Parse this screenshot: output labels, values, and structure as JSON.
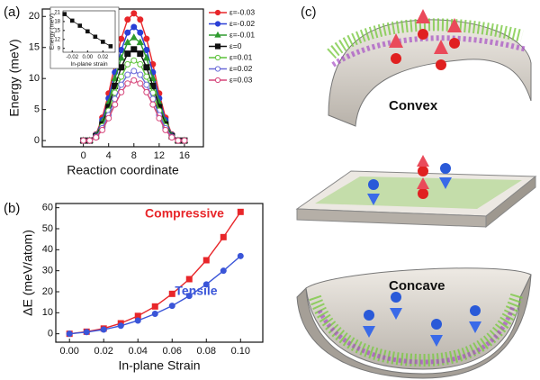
{
  "chart_data": [
    {
      "type": "line",
      "panel_label": "(a)",
      "xlabel": "Reaction coordinate",
      "ylabel": "Energy (meV)",
      "x": [
        0,
        1,
        2,
        3,
        4,
        5,
        6,
        7,
        8,
        9,
        10,
        11,
        12,
        13,
        14,
        15,
        16
      ],
      "xlim": [
        -6.5,
        19
      ],
      "xticks": [
        0,
        4,
        8,
        12,
        16
      ],
      "ylim": [
        -1,
        21.2
      ],
      "yticks": [
        0,
        5,
        10,
        15,
        20
      ],
      "series": [
        {
          "name": "ε=-0.03",
          "color": "#e8262a",
          "marker": "circle",
          "filled": true,
          "values": [
            0,
            0,
            1.0,
            3.7,
            7.6,
            12.3,
            16.4,
            19.5,
            20.5,
            19.5,
            16.4,
            12.3,
            7.6,
            3.7,
            1.0,
            0,
            0
          ]
        },
        {
          "name": "ε=-0.02",
          "color": "#2a3fd6",
          "marker": "circle",
          "filled": true,
          "values": [
            0,
            0,
            0.9,
            3.3,
            6.8,
            11.0,
            14.6,
            17.4,
            18.3,
            17.4,
            14.6,
            11.0,
            6.8,
            3.3,
            0.9,
            0,
            0
          ]
        },
        {
          "name": "ε=-0.01",
          "color": "#2e9a2e",
          "marker": "triangle",
          "filled": true,
          "values": [
            0,
            0,
            0.8,
            3.0,
            6.1,
            10.0,
            13.3,
            15.8,
            16.6,
            15.8,
            13.3,
            10.0,
            6.1,
            3.0,
            0.8,
            0,
            0
          ]
        },
        {
          "name": "ε=0",
          "color": "#111111",
          "marker": "square",
          "filled": true,
          "values": [
            0,
            0,
            0.7,
            2.6,
            5.4,
            8.8,
            11.8,
            14.0,
            14.7,
            14.0,
            11.8,
            8.8,
            5.4,
            2.6,
            0.7,
            0,
            0
          ]
        },
        {
          "name": "ε=0.01",
          "color": "#5cc23a",
          "marker": "circle",
          "filled": false,
          "values": [
            0,
            0,
            0.6,
            2.3,
            4.8,
            7.7,
            10.3,
            12.3,
            12.9,
            12.3,
            10.3,
            7.7,
            4.8,
            2.3,
            0.6,
            0,
            0
          ]
        },
        {
          "name": "ε=0.02",
          "color": "#6a6ad8",
          "marker": "circle",
          "filled": false,
          "values": [
            0,
            0,
            0.6,
            2.0,
            4.1,
            6.7,
            9.0,
            10.6,
            11.2,
            10.6,
            9.0,
            6.7,
            4.1,
            2.0,
            0.6,
            0,
            0
          ]
        },
        {
          "name": "ε=0.03",
          "color": "#d6457a",
          "marker": "circle",
          "filled": false,
          "values": [
            0,
            0,
            0.5,
            1.7,
            3.6,
            5.8,
            7.8,
            9.2,
            9.7,
            9.2,
            7.8,
            5.8,
            3.6,
            1.7,
            0.5,
            0,
            0
          ]
        }
      ]
    },
    {
      "type": "line",
      "xlabel": "In-plane strain",
      "ylabel": "Energy (meV)",
      "x": [
        -0.03,
        -0.02,
        -0.01,
        0,
        0.01,
        0.02,
        0.03
      ],
      "xlim": [
        -0.032,
        0.036
      ],
      "xticks": [
        {
          "value": -0.02,
          "label": "-0.02"
        },
        {
          "value": 0,
          "label": "0.00"
        },
        {
          "value": 0.02,
          "label": "0.02"
        }
      ],
      "ylim": [
        7.7,
        21.6
      ],
      "yticks": [
        9,
        12,
        15,
        18,
        21
      ],
      "series": [
        {
          "color": "#111111",
          "marker": "square",
          "filled": true,
          "values": [
            20.5,
            18.3,
            16.6,
            14.7,
            12.9,
            11.2,
            9.7
          ]
        }
      ]
    },
    {
      "type": "line",
      "panel_label": "(b)",
      "xlabel": "In-plane Strain",
      "ylabel": "ΔE (meV/atom)",
      "x": [
        0,
        0.01,
        0.02,
        0.03,
        0.04,
        0.05,
        0.06,
        0.07,
        0.08,
        0.09,
        0.1
      ],
      "xlim": [
        -0.008,
        0.113
      ],
      "xticks": [
        {
          "value": 0,
          "label": "0.00"
        },
        {
          "value": 0.02,
          "label": "0.02"
        },
        {
          "value": 0.04,
          "label": "0.04"
        },
        {
          "value": 0.06,
          "label": "0.06"
        },
        {
          "value": 0.08,
          "label": "0.08"
        },
        {
          "value": 0.1,
          "label": "0.10"
        }
      ],
      "ylim": [
        -4,
        62
      ],
      "yticks": [
        0,
        10,
        20,
        30,
        40,
        50,
        60
      ],
      "annotations": [
        {
          "text": "Compressive",
          "color": "#e8262a"
        },
        {
          "text": "Tensile",
          "color": "#3a55d8"
        }
      ],
      "series": [
        {
          "color": "#e8262a",
          "marker": "square",
          "filled": true,
          "values": [
            0,
            1,
            2.5,
            5,
            8.5,
            13,
            19,
            26,
            35,
            46,
            58
          ]
        },
        {
          "color": "#3a55d8",
          "marker": "circle",
          "filled": true,
          "values": [
            0,
            0.8,
            2,
            3.8,
            6.3,
            9.5,
            13.3,
            18,
            23.5,
            30,
            37
          ]
        }
      ]
    }
  ],
  "panel_c": {
    "label": "(c)",
    "captions": [
      "Convex",
      "Concave"
    ]
  }
}
